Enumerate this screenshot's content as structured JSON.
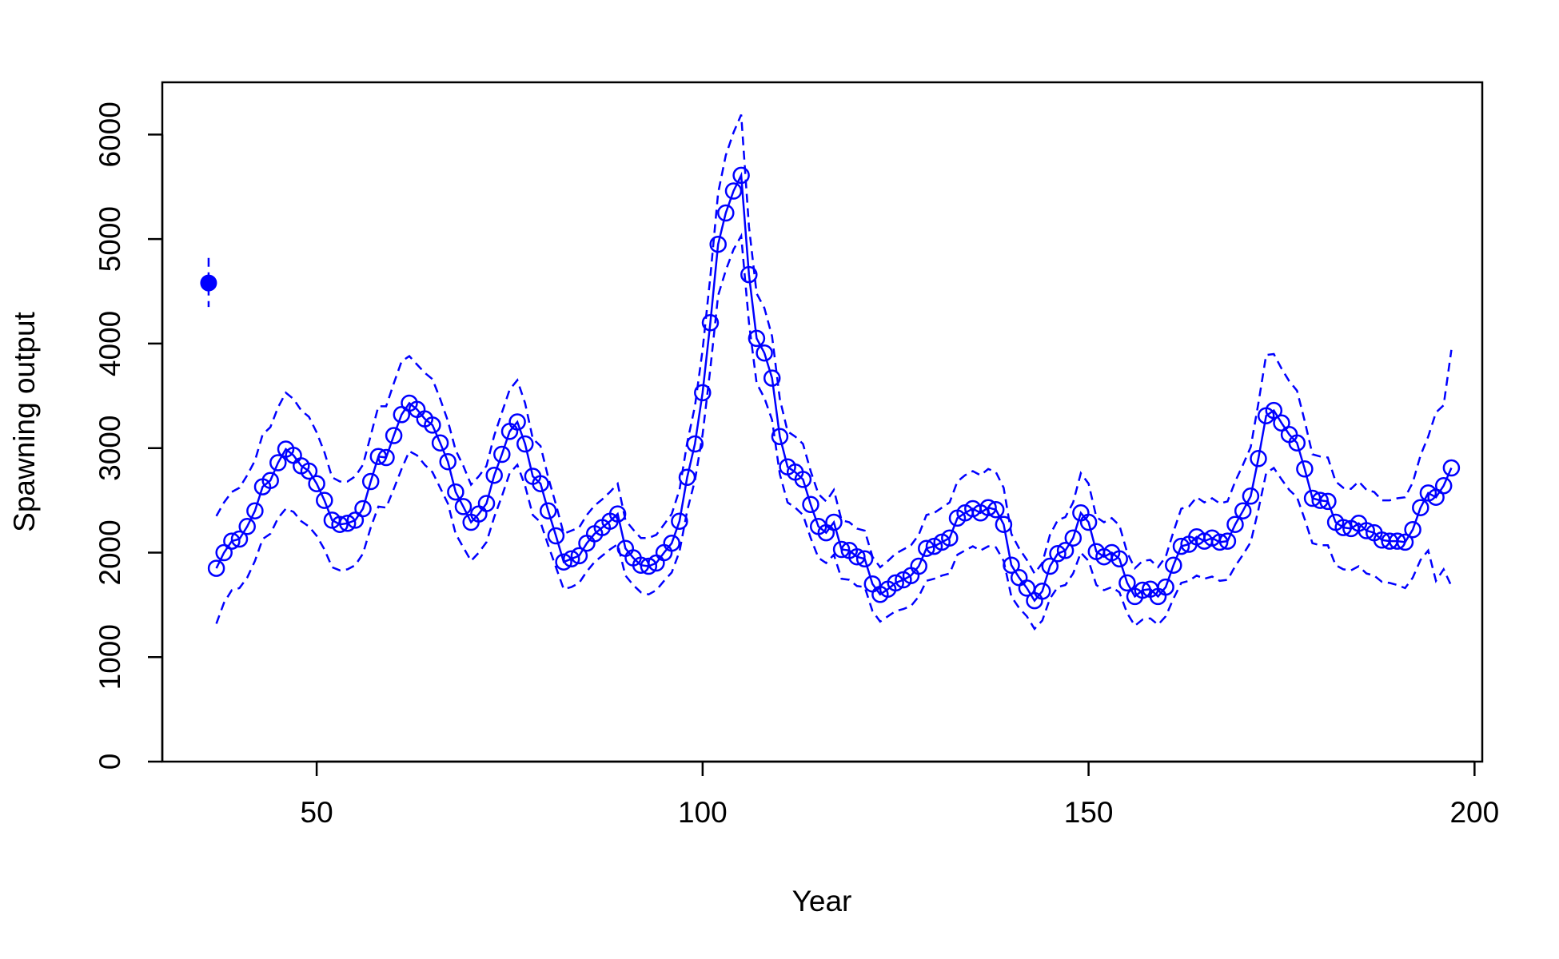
{
  "chart_data": {
    "type": "line",
    "xlabel": "Year",
    "ylabel": "Spawning output",
    "xlim": [
      30,
      201
    ],
    "ylim": [
      0,
      6500
    ],
    "x_ticks": [
      50,
      100,
      150,
      200
    ],
    "y_ticks": [
      0,
      1000,
      2000,
      3000,
      4000,
      5000,
      6000
    ],
    "x_tick_labels": [
      "50",
      "100",
      "150",
      "200"
    ],
    "y_tick_labels": [
      "0",
      "1000",
      "2000",
      "3000",
      "4000",
      "5000",
      "6000"
    ],
    "grid": false,
    "color": "#0000ff",
    "virgin": {
      "x": 36,
      "value": 4580,
      "lower": 4350,
      "upper": 4820
    },
    "series": [
      {
        "role": "estimate",
        "x": [
          37,
          38,
          39,
          40,
          41,
          42,
          43,
          44,
          45,
          46,
          47,
          48,
          49,
          50,
          51,
          52,
          53,
          54,
          55,
          56,
          57,
          58,
          59,
          60,
          61,
          62,
          63,
          64,
          65,
          66,
          67,
          68,
          69,
          70,
          71,
          72,
          73,
          74,
          75,
          76,
          77,
          78,
          79,
          80,
          81,
          82,
          83,
          84,
          85,
          86,
          87,
          88,
          89,
          90,
          91,
          92,
          93,
          94,
          95,
          96,
          97,
          98,
          99,
          100,
          101,
          102,
          103,
          104,
          105,
          106,
          107,
          108,
          109,
          110,
          111,
          112,
          113,
          114,
          115,
          116,
          117,
          118,
          119,
          120,
          121,
          122,
          123,
          124,
          125,
          126,
          127,
          128,
          129,
          130,
          131,
          132,
          133,
          134,
          135,
          136,
          137,
          138,
          139,
          140,
          141,
          142,
          143,
          144,
          145,
          146,
          147,
          148,
          149,
          150,
          151,
          152,
          153,
          154,
          155,
          156,
          157,
          158,
          159,
          160,
          161,
          162,
          163,
          164,
          165,
          166,
          167,
          168,
          169,
          170,
          171,
          172,
          173,
          174,
          175,
          176,
          177,
          178,
          179,
          180,
          181,
          182,
          183,
          184,
          185,
          186,
          187,
          188,
          189,
          190,
          191,
          192,
          193,
          194,
          195,
          196,
          197
        ],
        "values": [
          1850,
          2000,
          2110,
          2130,
          2250,
          2400,
          2630,
          2690,
          2860,
          2990,
          2930,
          2830,
          2780,
          2660,
          2500,
          2310,
          2270,
          2280,
          2310,
          2420,
          2680,
          2920,
          2910,
          3120,
          3320,
          3430,
          3370,
          3280,
          3220,
          3050,
          2870,
          2580,
          2440,
          2290,
          2370,
          2470,
          2740,
          2940,
          3160,
          3250,
          3040,
          2730,
          2660,
          2400,
          2160,
          1910,
          1940,
          1970,
          2090,
          2180,
          2240,
          2300,
          2370,
          2040,
          1950,
          1880,
          1870,
          1900,
          2000,
          2090,
          2300,
          2720,
          3040,
          3530,
          4200,
          4950,
          5250,
          5460,
          5610,
          4660,
          4050,
          3910,
          3670,
          3110,
          2820,
          2770,
          2700,
          2460,
          2250,
          2190,
          2290,
          2030,
          2020,
          1960,
          1940,
          1700,
          1600,
          1650,
          1710,
          1740,
          1780,
          1870,
          2040,
          2060,
          2100,
          2140,
          2330,
          2380,
          2420,
          2380,
          2430,
          2410,
          2270,
          1880,
          1760,
          1660,
          1540,
          1630,
          1870,
          1990,
          2020,
          2140,
          2380,
          2290,
          2010,
          1960,
          2000,
          1940,
          1710,
          1580,
          1640,
          1650,
          1580,
          1670,
          1880,
          2060,
          2080,
          2150,
          2110,
          2140,
          2100,
          2110,
          2270,
          2400,
          2540,
          2900,
          3310,
          3360,
          3240,
          3130,
          3050,
          2800,
          2520,
          2500,
          2490,
          2290,
          2240,
          2230,
          2280,
          2210,
          2190,
          2120,
          2110,
          2110,
          2100,
          2220,
          2430,
          2570,
          2530,
          2640,
          2810
        ]
      },
      {
        "role": "upper",
        "x": [
          37,
          38,
          39,
          40,
          41,
          42,
          43,
          44,
          45,
          46,
          47,
          48,
          49,
          50,
          51,
          52,
          53,
          54,
          55,
          56,
          57,
          58,
          59,
          60,
          61,
          62,
          63,
          64,
          65,
          66,
          67,
          68,
          69,
          70,
          71,
          72,
          73,
          74,
          75,
          76,
          77,
          78,
          79,
          80,
          81,
          82,
          83,
          84,
          85,
          86,
          87,
          88,
          89,
          90,
          91,
          92,
          93,
          94,
          95,
          96,
          97,
          98,
          99,
          100,
          101,
          102,
          103,
          104,
          105,
          106,
          107,
          108,
          109,
          110,
          111,
          112,
          113,
          114,
          115,
          116,
          117,
          118,
          119,
          120,
          121,
          122,
          123,
          124,
          125,
          126,
          127,
          128,
          129,
          130,
          131,
          132,
          133,
          134,
          135,
          136,
          137,
          138,
          139,
          140,
          141,
          142,
          143,
          144,
          145,
          146,
          147,
          148,
          149,
          150,
          151,
          152,
          153,
          154,
          155,
          156,
          157,
          158,
          159,
          160,
          161,
          162,
          163,
          164,
          165,
          166,
          167,
          168,
          169,
          170,
          171,
          172,
          173,
          174,
          175,
          176,
          177,
          178,
          179,
          180,
          181,
          182,
          183,
          184,
          185,
          186,
          187,
          188,
          189,
          190,
          191,
          192,
          193,
          194,
          195,
          196,
          197
        ],
        "values": [
          2350,
          2480,
          2580,
          2620,
          2740,
          2880,
          3130,
          3200,
          3390,
          3530,
          3470,
          3360,
          3300,
          3150,
          2960,
          2720,
          2680,
          2680,
          2730,
          2840,
          3120,
          3400,
          3400,
          3620,
          3830,
          3880,
          3800,
          3720,
          3660,
          3470,
          3260,
          2980,
          2830,
          2650,
          2730,
          2830,
          3120,
          3340,
          3560,
          3650,
          3430,
          3090,
          3020,
          2720,
          2460,
          2180,
          2210,
          2240,
          2360,
          2450,
          2510,
          2580,
          2660,
          2310,
          2220,
          2140,
          2140,
          2170,
          2270,
          2370,
          2600,
          3050,
          3400,
          3940,
          4640,
          5440,
          5800,
          6020,
          6190,
          5120,
          4480,
          4340,
          4070,
          3470,
          3160,
          3110,
          3040,
          2780,
          2560,
          2490,
          2600,
          2310,
          2290,
          2230,
          2210,
          1960,
          1860,
          1920,
          1990,
          2030,
          2070,
          2170,
          2360,
          2380,
          2430,
          2480,
          2680,
          2740,
          2780,
          2740,
          2800,
          2770,
          2620,
          2180,
          2040,
          1930,
          1800,
          1900,
          2170,
          2310,
          2340,
          2480,
          2760,
          2660,
          2340,
          2290,
          2330,
          2260,
          2000,
          1850,
          1920,
          1930,
          1860,
          1960,
          2200,
          2420,
          2440,
          2530,
          2480,
          2520,
          2470,
          2490,
          2680,
          2840,
          3010,
          3430,
          3890,
          3900,
          3760,
          3640,
          3550,
          3260,
          2940,
          2920,
          2910,
          2680,
          2620,
          2610,
          2680,
          2600,
          2580,
          2500,
          2500,
          2520,
          2530,
          2670,
          2930,
          3110,
          3340,
          3410,
          3940
        ]
      },
      {
        "role": "lower",
        "x": [
          37,
          38,
          39,
          40,
          41,
          42,
          43,
          44,
          45,
          46,
          47,
          48,
          49,
          50,
          51,
          52,
          53,
          54,
          55,
          56,
          57,
          58,
          59,
          60,
          61,
          62,
          63,
          64,
          65,
          66,
          67,
          68,
          69,
          70,
          71,
          72,
          73,
          74,
          75,
          76,
          77,
          78,
          79,
          80,
          81,
          82,
          83,
          84,
          85,
          86,
          87,
          88,
          89,
          90,
          91,
          92,
          93,
          94,
          95,
          96,
          97,
          98,
          99,
          100,
          101,
          102,
          103,
          104,
          105,
          106,
          107,
          108,
          109,
          110,
          111,
          112,
          113,
          114,
          115,
          116,
          117,
          118,
          119,
          120,
          121,
          122,
          123,
          124,
          125,
          126,
          127,
          128,
          129,
          130,
          131,
          132,
          133,
          134,
          135,
          136,
          137,
          138,
          139,
          140,
          141,
          142,
          143,
          144,
          145,
          146,
          147,
          148,
          149,
          150,
          151,
          152,
          153,
          154,
          155,
          156,
          157,
          158,
          159,
          160,
          161,
          162,
          163,
          164,
          165,
          166,
          167,
          168,
          169,
          170,
          171,
          172,
          173,
          174,
          175,
          176,
          177,
          178,
          179,
          180,
          181,
          182,
          183,
          184,
          185,
          186,
          187,
          188,
          189,
          190,
          191,
          192,
          193,
          194,
          195,
          196,
          197
        ],
        "values": [
          1320,
          1520,
          1640,
          1660,
          1760,
          1920,
          2130,
          2180,
          2330,
          2420,
          2390,
          2300,
          2250,
          2160,
          2030,
          1860,
          1830,
          1840,
          1880,
          1990,
          2240,
          2440,
          2430,
          2610,
          2800,
          2970,
          2930,
          2840,
          2770,
          2620,
          2470,
          2180,
          2050,
          1920,
          2000,
          2100,
          2340,
          2540,
          2760,
          2840,
          2640,
          2360,
          2290,
          2070,
          1860,
          1650,
          1670,
          1710,
          1820,
          1910,
          1970,
          2030,
          2080,
          1780,
          1690,
          1620,
          1600,
          1640,
          1730,
          1810,
          2010,
          2400,
          2690,
          3130,
          3760,
          4460,
          4700,
          4900,
          5030,
          4200,
          3620,
          3480,
          3270,
          2750,
          2480,
          2430,
          2360,
          2140,
          1950,
          1900,
          1980,
          1750,
          1740,
          1680,
          1670,
          1440,
          1340,
          1390,
          1440,
          1460,
          1490,
          1580,
          1730,
          1750,
          1780,
          1800,
          1980,
          2020,
          2060,
          2020,
          2060,
          2050,
          1920,
          1580,
          1470,
          1390,
          1270,
          1350,
          1560,
          1670,
          1690,
          1800,
          2000,
          1920,
          1690,
          1640,
          1670,
          1620,
          1420,
          1300,
          1360,
          1370,
          1310,
          1390,
          1560,
          1710,
          1730,
          1780,
          1750,
          1770,
          1730,
          1740,
          1870,
          1980,
          2100,
          2410,
          2760,
          2810,
          2700,
          2600,
          2530,
          2320,
          2090,
          2070,
          2070,
          1880,
          1840,
          1830,
          1870,
          1800,
          1780,
          1720,
          1710,
          1690,
          1660,
          1760,
          1930,
          2020,
          1730,
          1840,
          1680
        ]
      }
    ]
  }
}
